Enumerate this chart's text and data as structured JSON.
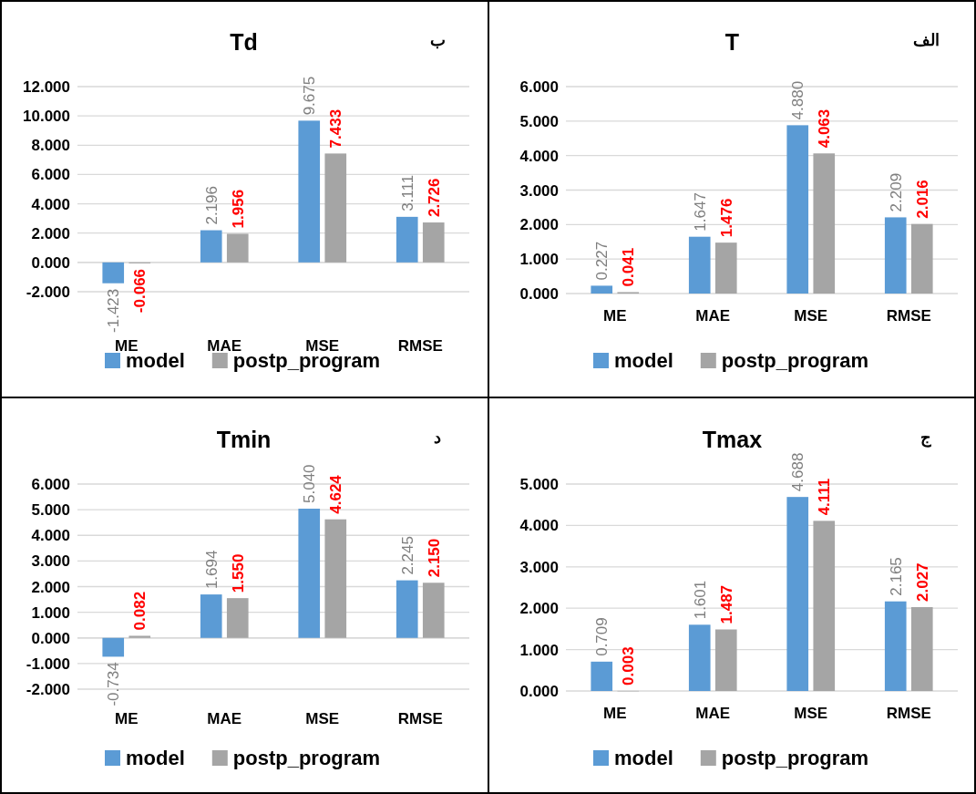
{
  "chart_data": [
    {
      "type": "bar",
      "title": "Td",
      "subtitle": "ب",
      "categories": [
        "ME",
        "MAE",
        "MSE",
        "RMSE"
      ],
      "ylim": [
        -2,
        12
      ],
      "yticks": [
        {
          "value": -2,
          "label": "-2.000"
        },
        {
          "value": 0,
          "label": "0.000"
        },
        {
          "value": 2,
          "label": "2.000"
        },
        {
          "value": 4,
          "label": "4.000"
        },
        {
          "value": 6,
          "label": "6.000"
        },
        {
          "value": 8,
          "label": "8.000"
        },
        {
          "value": 10,
          "label": "10.000"
        },
        {
          "value": 12,
          "label": "12.000"
        }
      ],
      "grid": "y",
      "legend": "bottom",
      "series": [
        {
          "name": "model",
          "color": "#5b9bd5",
          "values": [
            -1.423,
            2.196,
            9.675,
            3.111
          ],
          "value_labels": [
            "-1.423",
            "2.196",
            "9.675",
            "3.111"
          ]
        },
        {
          "name": "postp_program",
          "color": "#a5a5a5",
          "values": [
            -0.066,
            1.956,
            7.433,
            2.726
          ],
          "value_labels": [
            "-0.066",
            "1.956",
            "7.433",
            "2.726"
          ]
        }
      ]
    },
    {
      "type": "bar",
      "title": "T",
      "subtitle": "الف",
      "categories": [
        "ME",
        "MAE",
        "MSE",
        "RMSE"
      ],
      "ylim": [
        0,
        6
      ],
      "yticks": [
        {
          "value": 0,
          "label": "0.000"
        },
        {
          "value": 1,
          "label": "1.000"
        },
        {
          "value": 2,
          "label": "2.000"
        },
        {
          "value": 3,
          "label": "3.000"
        },
        {
          "value": 4,
          "label": "4.000"
        },
        {
          "value": 5,
          "label": "5.000"
        },
        {
          "value": 6,
          "label": "6.000"
        }
      ],
      "grid": "y",
      "legend": "bottom",
      "series": [
        {
          "name": "model",
          "color": "#5b9bd5",
          "values": [
            0.227,
            1.647,
            4.88,
            2.209
          ],
          "value_labels": [
            "0.227",
            "1.647",
            "4.880",
            "2.209"
          ]
        },
        {
          "name": "postp_program",
          "color": "#a5a5a5",
          "values": [
            0.041,
            1.476,
            4.063,
            2.016
          ],
          "value_labels": [
            "0.041",
            "1.476",
            "4.063",
            "2.016"
          ]
        }
      ]
    },
    {
      "type": "bar",
      "title": "Tmin",
      "subtitle": "د",
      "categories": [
        "ME",
        "MAE",
        "MSE",
        "RMSE"
      ],
      "ylim": [
        -2,
        6
      ],
      "yticks": [
        {
          "value": -2,
          "label": "-2.000"
        },
        {
          "value": -1,
          "label": "-1.000"
        },
        {
          "value": 0,
          "label": "0.000"
        },
        {
          "value": 1,
          "label": "1.000"
        },
        {
          "value": 2,
          "label": "2.000"
        },
        {
          "value": 3,
          "label": "3.000"
        },
        {
          "value": 4,
          "label": "4.000"
        },
        {
          "value": 5,
          "label": "5.000"
        },
        {
          "value": 6,
          "label": "6.000"
        }
      ],
      "grid": "y",
      "legend": "bottom",
      "series": [
        {
          "name": "model",
          "color": "#5b9bd5",
          "values": [
            -0.734,
            1.694,
            5.04,
            2.245
          ],
          "value_labels": [
            "-0.734",
            "1.694",
            "5.040",
            "2.245"
          ]
        },
        {
          "name": "postp_program",
          "color": "#a5a5a5",
          "values": [
            0.082,
            1.55,
            4.624,
            2.15
          ],
          "value_labels": [
            "0.082",
            "1.550",
            "4.624",
            "2.150"
          ]
        }
      ]
    },
    {
      "type": "bar",
      "title": "Tmax",
      "subtitle": "ج",
      "categories": [
        "ME",
        "MAE",
        "MSE",
        "RMSE"
      ],
      "ylim": [
        0,
        5
      ],
      "yticks": [
        {
          "value": 0,
          "label": "0.000"
        },
        {
          "value": 1,
          "label": "1.000"
        },
        {
          "value": 2,
          "label": "2.000"
        },
        {
          "value": 3,
          "label": "3.000"
        },
        {
          "value": 4,
          "label": "4.000"
        },
        {
          "value": 5,
          "label": "5.000"
        }
      ],
      "grid": "y",
      "legend": "bottom",
      "series": [
        {
          "name": "model",
          "color": "#5b9bd5",
          "values": [
            0.709,
            1.601,
            4.688,
            2.165
          ],
          "value_labels": [
            "0.709",
            "1.601",
            "4.688",
            "2.165"
          ]
        },
        {
          "name": "postp_program",
          "color": "#a5a5a5",
          "values": [
            0.003,
            1.487,
            4.111,
            2.027
          ],
          "value_labels": [
            "0.003",
            "1.487",
            "4.111",
            "2.027"
          ]
        }
      ]
    }
  ]
}
